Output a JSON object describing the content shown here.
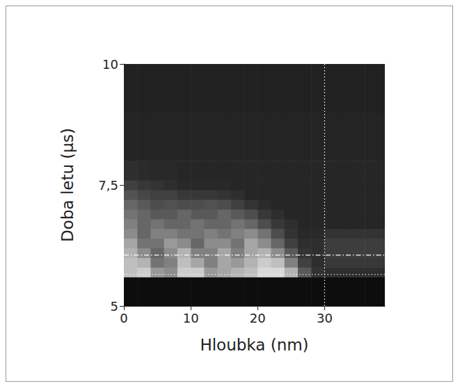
{
  "chart_data": {
    "type": "heatmap",
    "x_label": "Hloubka (nm)",
    "y_label": "Doba letu (µs)",
    "xlim": [
      0,
      39
    ],
    "ylim": [
      5,
      10
    ],
    "xticks": [
      0,
      10,
      20,
      30
    ],
    "yticks": [
      5,
      {
        "value": 7.5,
        "label": "7,5"
      },
      10
    ],
    "x_edges": [
      0,
      2,
      4,
      6,
      8,
      10,
      12,
      14,
      16,
      18,
      20,
      22,
      24,
      26,
      28,
      30,
      32,
      34,
      36,
      38,
      39
    ],
    "y_edges": [
      5,
      5.6,
      5.8,
      6.0,
      6.2,
      6.4,
      6.6,
      6.8,
      7.0,
      7.2,
      7.4,
      7.6,
      8,
      9,
      10
    ],
    "zlim": [
      0,
      100
    ],
    "intensity": [
      [
        5,
        5,
        5,
        5,
        5,
        5,
        5,
        5,
        5,
        5,
        5,
        5,
        5,
        5,
        5,
        5,
        5,
        5,
        5,
        5
      ],
      [
        75,
        80,
        60,
        55,
        80,
        80,
        60,
        65,
        70,
        75,
        85,
        85,
        70,
        35,
        20,
        18,
        18,
        18,
        18,
        18
      ],
      [
        75,
        70,
        45,
        50,
        75,
        65,
        50,
        65,
        60,
        70,
        80,
        75,
        50,
        25,
        18,
        22,
        22,
        22,
        22,
        22
      ],
      [
        70,
        55,
        40,
        55,
        70,
        50,
        50,
        65,
        50,
        65,
        70,
        55,
        35,
        20,
        18,
        24,
        24,
        24,
        24,
        24
      ],
      [
        65,
        45,
        45,
        60,
        55,
        40,
        55,
        55,
        45,
        65,
        55,
        40,
        25,
        18,
        18,
        24,
        24,
        24,
        24,
        24
      ],
      [
        55,
        40,
        50,
        50,
        45,
        45,
        50,
        45,
        50,
        55,
        45,
        30,
        20,
        16,
        16,
        20,
        20,
        20,
        20,
        20
      ],
      [
        50,
        40,
        45,
        40,
        40,
        45,
        40,
        40,
        45,
        40,
        30,
        22,
        18,
        15,
        15,
        15,
        15,
        15,
        15,
        15
      ],
      [
        45,
        40,
        35,
        35,
        40,
        35,
        35,
        40,
        35,
        30,
        22,
        18,
        15,
        15,
        15,
        15,
        15,
        15,
        15,
        15
      ],
      [
        40,
        35,
        30,
        32,
        30,
        30,
        32,
        30,
        25,
        20,
        17,
        15,
        15,
        15,
        15,
        15,
        15,
        15,
        15,
        15
      ],
      [
        32,
        28,
        25,
        25,
        22,
        22,
        22,
        20,
        18,
        15,
        15,
        15,
        15,
        15,
        15,
        15,
        15,
        15,
        15,
        15
      ],
      [
        25,
        22,
        20,
        18,
        16,
        16,
        16,
        16,
        15,
        15,
        15,
        15,
        15,
        15,
        15,
        15,
        15,
        15,
        15,
        15
      ],
      [
        18,
        17,
        16,
        16,
        15,
        15,
        15,
        15,
        15,
        15,
        15,
        15,
        15,
        15,
        15,
        15,
        15,
        15,
        15,
        15
      ],
      [
        14,
        14,
        14,
        14,
        14,
        14,
        14,
        14,
        14,
        14,
        14,
        14,
        14,
        14,
        14,
        14,
        14,
        14,
        14,
        14
      ],
      [
        13,
        13,
        13,
        13,
        13,
        13,
        13,
        13,
        13,
        13,
        13,
        13,
        13,
        13,
        13,
        13,
        13,
        13,
        13,
        13
      ]
    ],
    "lines": [
      {
        "axis": "x",
        "value": 30,
        "line_style": "dotted",
        "color": "#ffffff"
      },
      {
        "axis": "y",
        "value": 5.65,
        "line_style": "dotted",
        "color": "#ffffff"
      },
      {
        "axis": "y",
        "value": 6.05,
        "line_style": "dashdot",
        "color": "#ffffff"
      }
    ]
  }
}
